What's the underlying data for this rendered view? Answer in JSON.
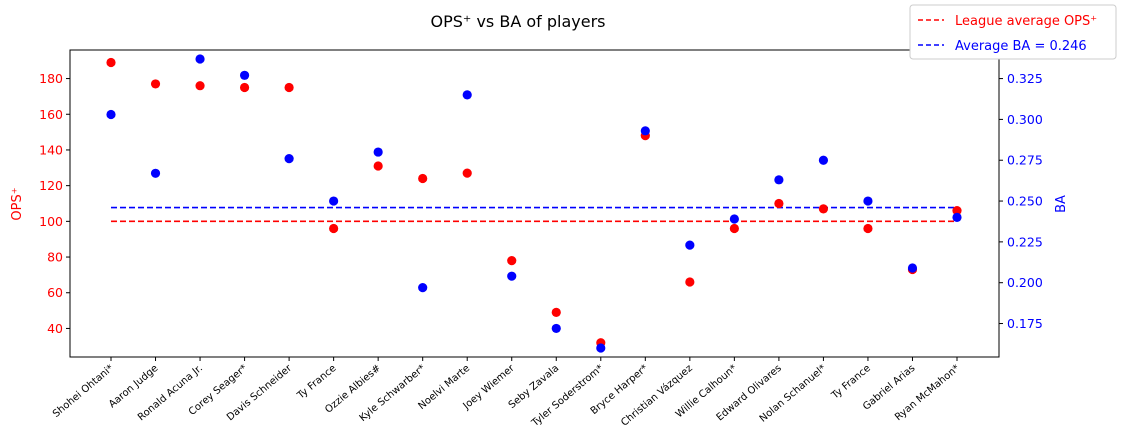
{
  "chart_data": {
    "type": "scatter",
    "title": "OPS⁺ vs BA of players",
    "categories": [
      "Shohei Ohtani*",
      "Aaron Judge",
      "Ronald Acuna Jr.",
      "Corey Seager*",
      "Davis Schneider",
      "Ty France",
      "Ozzie Albies#",
      "Kyle Schwarber*",
      "Noelvi Marte",
      "Joey Wiemer",
      "Seby Zavala",
      "Tyler Soderstrom*",
      "Bryce Harper*",
      "Christian Vázquez",
      "Willie Calhoun*",
      "Edward Olivares",
      "Nolan Schanuel*",
      "Ty France",
      "Gabriel Arias",
      "Ryan McMahon*"
    ],
    "series": [
      {
        "axis": "left",
        "color": "#ff0000",
        "values": [
          189,
          177,
          176,
          175,
          175,
          96,
          131,
          124,
          127,
          78,
          49,
          32,
          148,
          66,
          96,
          110,
          107,
          96,
          73,
          106
        ]
      },
      {
        "axis": "right",
        "color": "#0000ff",
        "values": [
          0.303,
          0.267,
          0.337,
          0.327,
          0.276,
          0.25,
          0.28,
          0.197,
          0.315,
          0.204,
          0.172,
          0.16,
          0.293,
          0.223,
          0.239,
          0.263,
          0.275,
          0.25,
          0.209,
          0.24
        ]
      }
    ],
    "reference_lines": [
      {
        "axis": "left",
        "value": 100,
        "color": "#ff0000",
        "style": "dashed"
      },
      {
        "axis": "right",
        "value": 0.246,
        "color": "#0000ff",
        "style": "dashed"
      }
    ],
    "left_axis": {
      "label": "OPS⁺",
      "color": "#ff0000",
      "ylim": [
        24,
        196
      ],
      "ticks": [
        "40",
        "60",
        "80",
        "100",
        "120",
        "140",
        "160",
        "180"
      ]
    },
    "right_axis": {
      "label": "BA",
      "color": "#0000ff",
      "ylim": [
        0.1545,
        0.3425
      ],
      "ticks": [
        "0.175",
        "0.200",
        "0.225",
        "0.250",
        "0.275",
        "0.300",
        "0.325"
      ]
    },
    "legend": {
      "position": "top-right",
      "entries": [
        "League average OPS⁺",
        "Average BA = 0.246"
      ]
    },
    "grid": false
  }
}
